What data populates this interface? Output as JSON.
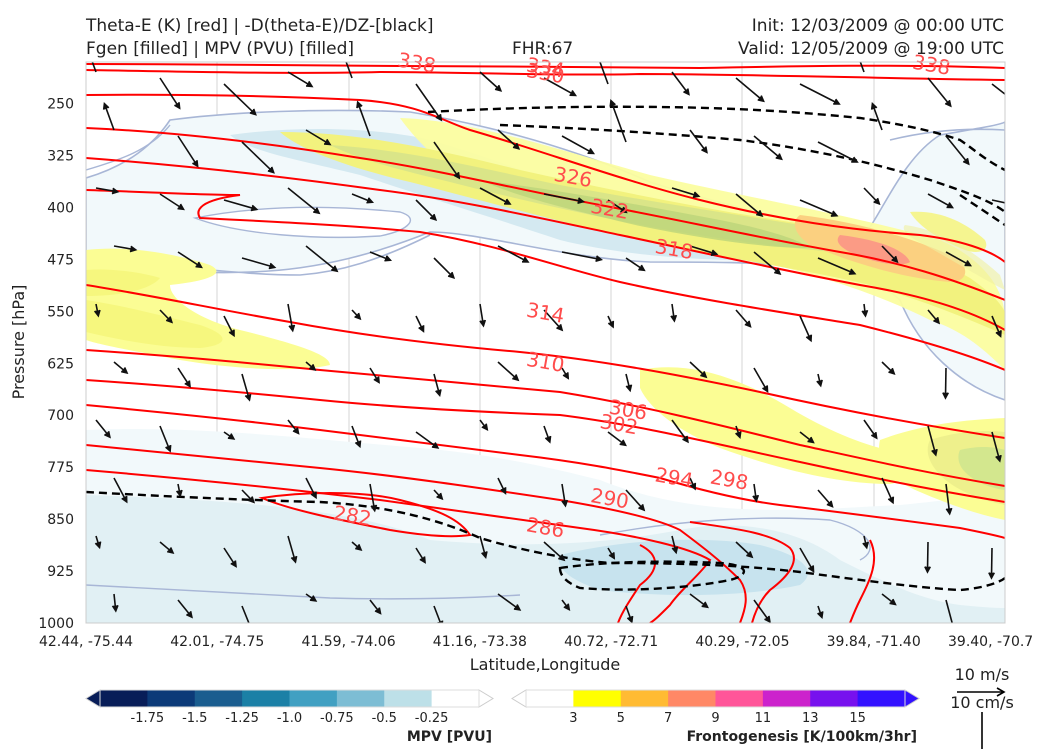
{
  "header": {
    "title_line1": "Theta-E (K) [red] | -D(theta-E)/DZ-[black]",
    "title_line2": "Fgen [filled] | MPV (PVU) [filled]",
    "fhr": "FHR:67",
    "init": "Init: 12/03/2009 @ 00:00 UTC",
    "valid": "Valid: 12/05/2009 @ 19:00 UTC"
  },
  "chart_data": {
    "type": "cross-section",
    "xlabel": "Latitude,Longitude",
    "ylabel": "Pressure [hPa]",
    "x_ticks": [
      "42.44, -75.44",
      "42.01, -74.75",
      "41.59, -74.06",
      "41.16, -73.38",
      "40.72, -72.71",
      "40.29, -72.05",
      "39.84, -71.40",
      "39.40, -70.7"
    ],
    "y_ticks": [
      250,
      325,
      400,
      475,
      550,
      625,
      700,
      775,
      850,
      925,
      1000
    ],
    "ylim": [
      1000,
      190
    ],
    "theta_e_labels": [
      {
        "value": "338",
        "x": 0.36,
        "p": 191
      },
      {
        "value": "334",
        "x": 0.5,
        "p": 198
      },
      {
        "value": "330",
        "x": 0.5,
        "p": 206
      },
      {
        "value": "338",
        "x": 0.92,
        "p": 194
      },
      {
        "value": "326",
        "x": 0.53,
        "p": 356
      },
      {
        "value": "322",
        "x": 0.57,
        "p": 402
      },
      {
        "value": "318",
        "x": 0.64,
        "p": 460
      },
      {
        "value": "314",
        "x": 0.5,
        "p": 552
      },
      {
        "value": "310",
        "x": 0.5,
        "p": 623
      },
      {
        "value": "306",
        "x": 0.59,
        "p": 692
      },
      {
        "value": "302",
        "x": 0.58,
        "p": 713
      },
      {
        "value": "294",
        "x": 0.64,
        "p": 790
      },
      {
        "value": "298",
        "x": 0.7,
        "p": 793
      },
      {
        "value": "290",
        "x": 0.57,
        "p": 820
      },
      {
        "value": "282",
        "x": 0.29,
        "p": 845
      },
      {
        "value": "286",
        "x": 0.5,
        "p": 862
      }
    ],
    "mpv_colorbar": {
      "label": "MPV [PVU]",
      "ticks": [
        "-1.75",
        "-1.5",
        "-1.25",
        "-1.0",
        "-0.75",
        "-0.5",
        "-0.25"
      ],
      "colors": [
        "#081d58",
        "#0c3a78",
        "#1a5d8f",
        "#1b80a6",
        "#41a0c2",
        "#7dbdd4",
        "#bde0e8",
        "#ffffff"
      ]
    },
    "fgen_colorbar": {
      "label": "Frontogenesis [K/100km/3hr]",
      "ticks": [
        "3",
        "5",
        "7",
        "9",
        "11",
        "13",
        "15"
      ],
      "colors": [
        "#ffffff",
        "#ffff00",
        "#ffbb33",
        "#ff8866",
        "#ff5599",
        "#cc22cc",
        "#7711ee",
        "#3311ff"
      ]
    },
    "wind_scale": {
      "label1": "10 m/s",
      "label2": "10 cm/s"
    },
    "legend": "bottom"
  }
}
